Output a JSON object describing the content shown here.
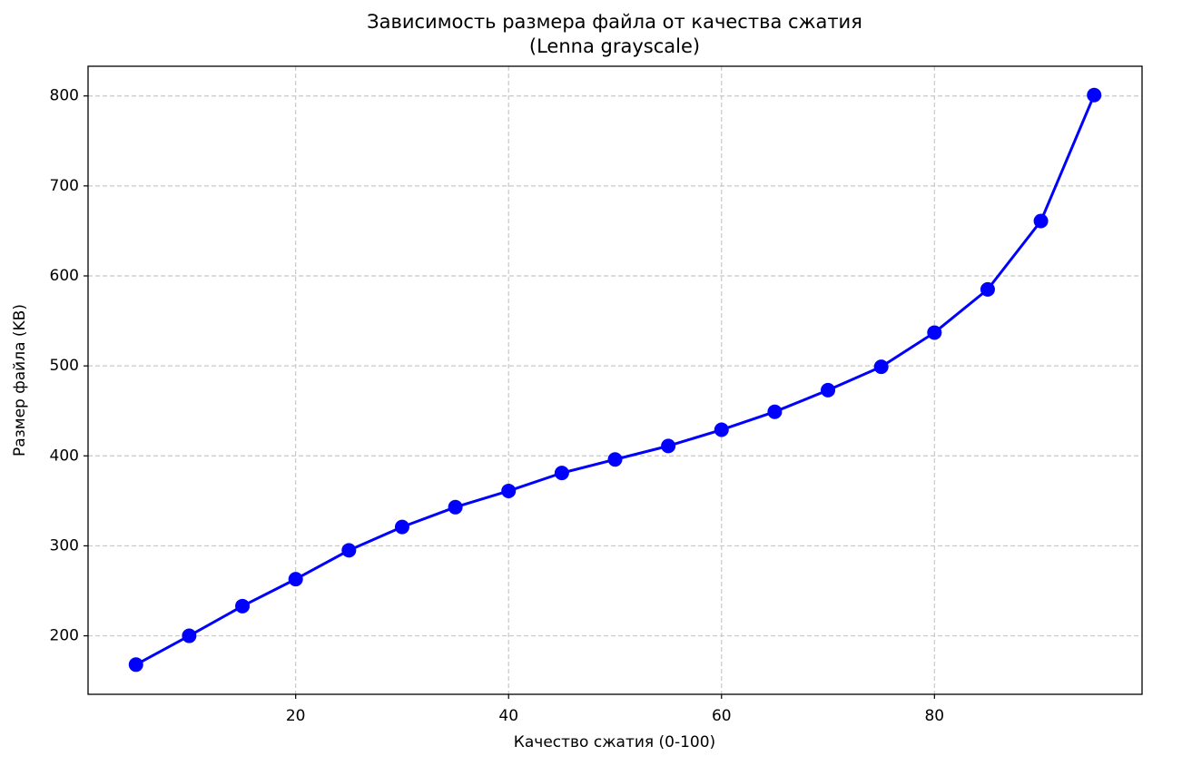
{
  "chart_data": {
    "type": "line",
    "title": [
      "Зависимость размера файла от качества сжатия",
      "(Lenna grayscale)"
    ],
    "x_label": "Качество сжатия (0-100)",
    "y_label": "Размер файла (KB)",
    "x": [
      5,
      10,
      15,
      20,
      25,
      30,
      35,
      40,
      45,
      50,
      55,
      60,
      65,
      70,
      75,
      80,
      85,
      90,
      95
    ],
    "series": [
      {
        "name": "Размер файла",
        "color": "#0000ff",
        "values": [
          168,
          200,
          233,
          263,
          295,
          321,
          343,
          361,
          381,
          396,
          411,
          429,
          449,
          473,
          499,
          537,
          585,
          661,
          801
        ]
      }
    ],
    "xlim": [
      0.5,
      99.5
    ],
    "xticks": [
      20,
      40,
      60,
      80
    ],
    "ylim": [
      135,
      833
    ],
    "yticks": [
      200,
      300,
      400,
      500,
      600,
      700,
      800
    ],
    "grid": true
  }
}
